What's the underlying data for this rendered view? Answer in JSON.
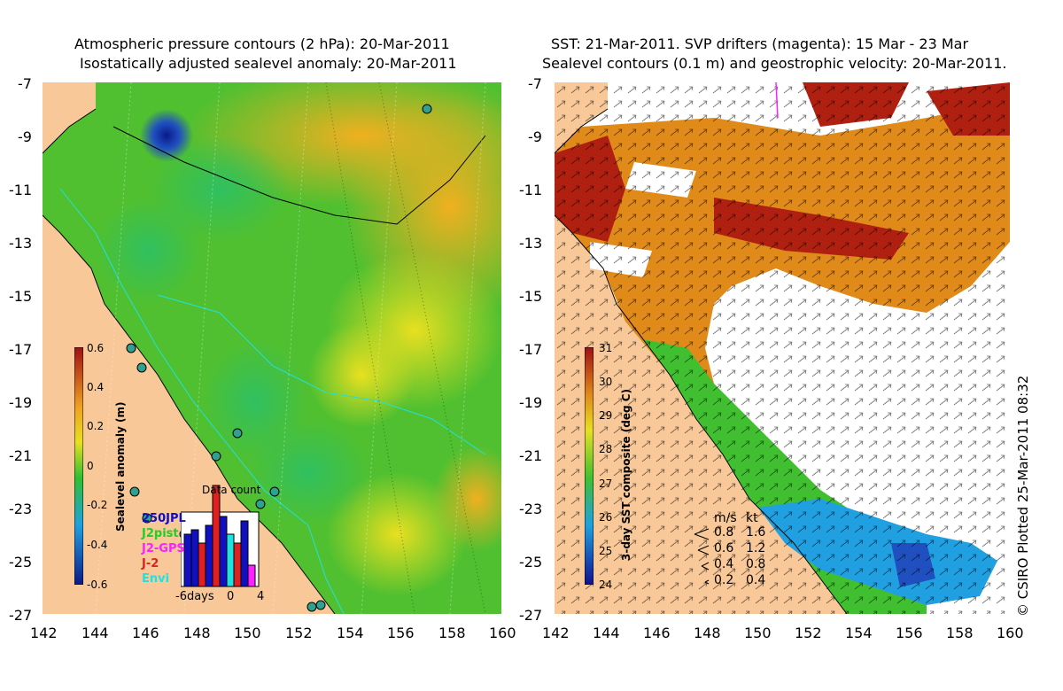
{
  "left_panel": {
    "title_line1": "Atmospheric pressure contours (2 hPa): 20-Mar-2011",
    "title_line2": "Isostatically adjusted sealevel anomaly: 20-Mar-2011",
    "colorbar": {
      "title": "Sealevel anomaly (m)",
      "ticks": [
        "0.6",
        "0.4",
        "0.2",
        "0",
        "-0.2",
        "-0.4",
        "-0.6"
      ]
    },
    "inset": {
      "title": "Data count",
      "legend": [
        {
          "label": "250JPL",
          "color": "#1010c0"
        },
        {
          "label": "J2pist",
          "color": "#20d020"
        },
        {
          "label": "J2-GPS",
          "color": "#ff20ff"
        },
        {
          "label": "J-2",
          "color": "#e02020"
        },
        {
          "label": "Envi",
          "color": "#20e0e0"
        }
      ],
      "xlabels": [
        "-6days",
        "0",
        "4"
      ]
    }
  },
  "right_panel": {
    "title_line1": "SST: 21-Mar-2011. SVP drifters (magenta): 15 Mar - 23 Mar",
    "title_line2": "Sealevel contours (0.1 m) and geostrophic velocity: 20-Mar-2011.",
    "colorbar": {
      "title": "3-day SST composite (deg C)",
      "ticks": [
        "31",
        "30",
        "29",
        "28",
        "27",
        "26",
        "25",
        "24"
      ]
    },
    "velocity_legend": {
      "header_ms": "m/s",
      "header_kt": "kt",
      "rows": [
        {
          "ms": "0.8",
          "kt": "1.6"
        },
        {
          "ms": "0.6",
          "kt": "1.2"
        },
        {
          "ms": "0.4",
          "kt": "0.8"
        },
        {
          "ms": "0.2",
          "kt": "0.4"
        }
      ]
    }
  },
  "axes": {
    "y_ticks": [
      "-7",
      "-9",
      "-11",
      "-13",
      "-15",
      "-17",
      "-19",
      "-21",
      "-23",
      "-25",
      "-27"
    ],
    "x_ticks": [
      "142",
      "144",
      "146",
      "148",
      "150",
      "152",
      "154",
      "156",
      "158",
      "160"
    ]
  },
  "copyright": "© CSIRO Plotted 25-Mar-2011 08:32",
  "colors": {
    "land": "#f8c898",
    "sla_low": "#0a1a8a",
    "sla_mid": "#20b020",
    "sla_high": "#c03010",
    "sst_low": "#101090",
    "sst_high": "#a01010"
  }
}
